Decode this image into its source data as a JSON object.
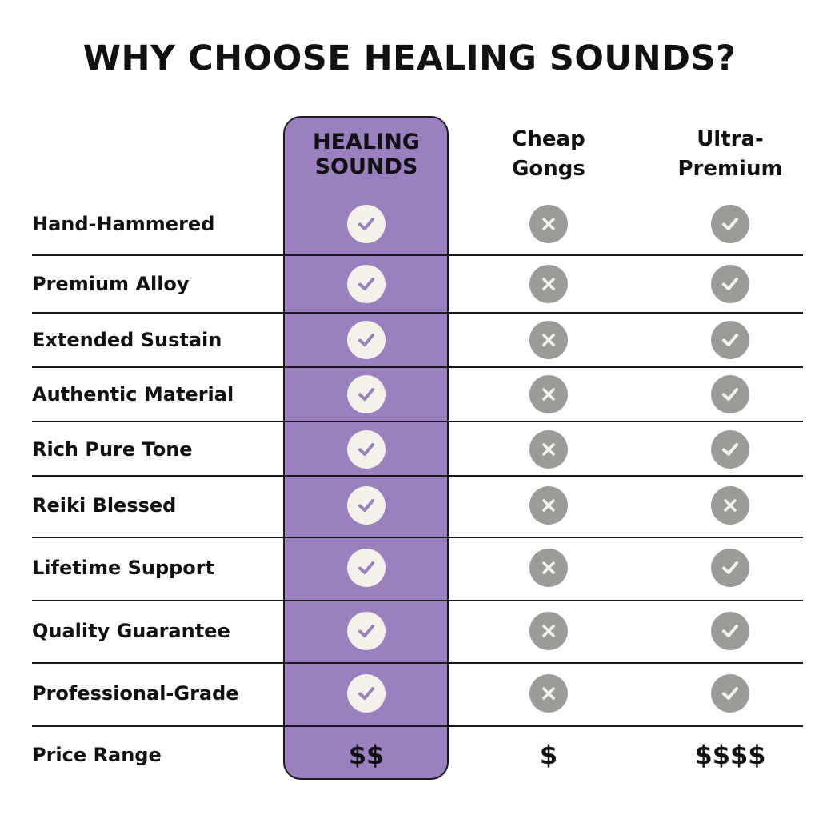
{
  "title": "WHY CHOOSE HEALING SOUNDS?",
  "colors": {
    "highlight": "#9b7fbf",
    "icon_grey": "#9b9b98",
    "check_bg": "#f4f1ea"
  },
  "columns": [
    {
      "line1": "HEALING",
      "line2": "SOUNDS"
    },
    {
      "line1": "Cheap",
      "line2": "Gongs"
    },
    {
      "line1": "Ultra-",
      "line2": "Premium"
    }
  ],
  "rows": [
    {
      "label": "Hand-Hammered",
      "values": [
        "check",
        "x",
        "check"
      ]
    },
    {
      "label": "Premium Alloy",
      "values": [
        "check",
        "x",
        "check"
      ]
    },
    {
      "label": "Extended Sustain",
      "values": [
        "check",
        "x",
        "check"
      ]
    },
    {
      "label": "Authentic Material",
      "values": [
        "check",
        "x",
        "check"
      ]
    },
    {
      "label": "Rich Pure Tone",
      "values": [
        "check",
        "x",
        "check"
      ]
    },
    {
      "label": "Reiki Blessed",
      "values": [
        "check",
        "x",
        "x"
      ]
    },
    {
      "label": "Lifetime Support",
      "values": [
        "check",
        "x",
        "check"
      ]
    },
    {
      "label": "Quality Guarantee",
      "values": [
        "check",
        "x",
        "check"
      ]
    },
    {
      "label": "Professional-Grade",
      "values": [
        "check",
        "x",
        "check"
      ]
    }
  ],
  "price": {
    "label": "Price Range",
    "values": [
      "$$",
      "$",
      "$$$$"
    ]
  }
}
